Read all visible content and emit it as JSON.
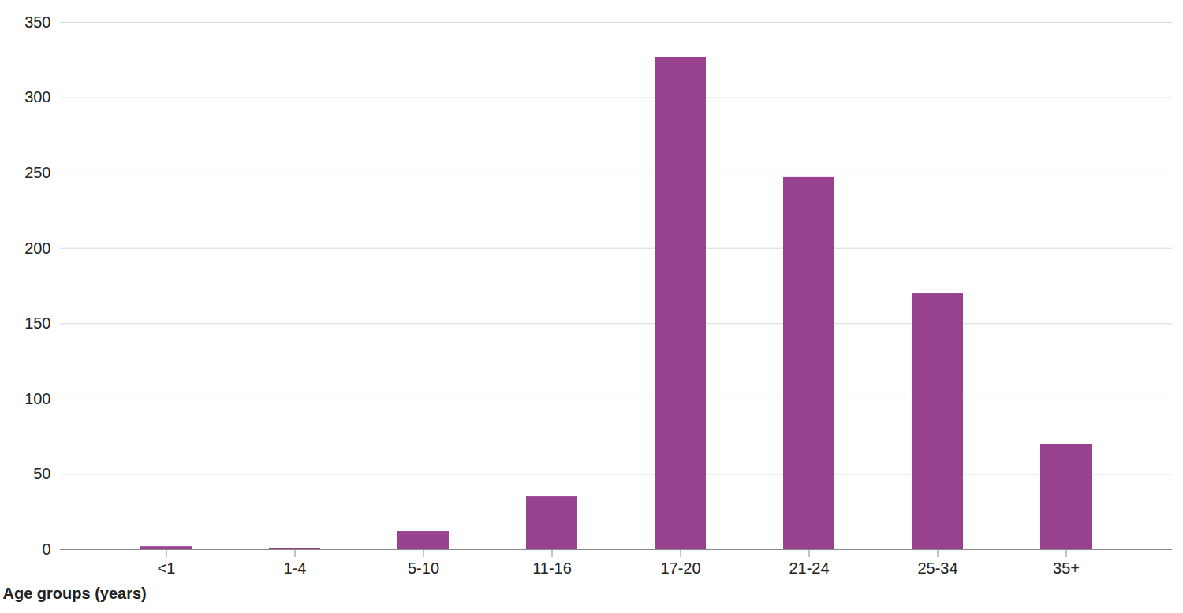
{
  "chart_data": {
    "type": "bar",
    "x_label": "Age groups (years)",
    "categories": [
      "<1",
      "1-4",
      "5-10",
      "11-16",
      "17-20",
      "21-24",
      "25-34",
      "35+"
    ],
    "values": [
      2,
      1,
      12,
      35,
      327,
      247,
      170,
      70
    ],
    "color": "#99428f",
    "ylim": [
      0,
      350
    ],
    "yticks": [
      0,
      50,
      100,
      150,
      200,
      250,
      300,
      350
    ],
    "grid": true
  }
}
